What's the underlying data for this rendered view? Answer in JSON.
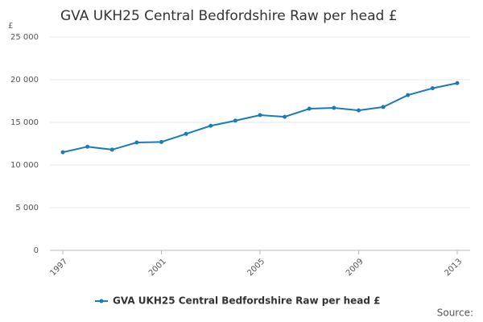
{
  "chart_data": {
    "type": "line",
    "title": "GVA UKH25 Central Bedfordshire Raw per head £",
    "y_label": "£",
    "source": "Source:",
    "x": [
      1997,
      1998,
      1999,
      2000,
      2001,
      2002,
      2003,
      2004,
      2005,
      2006,
      2007,
      2008,
      2009,
      2010,
      2011,
      2012,
      2013
    ],
    "series": [
      {
        "name": "GVA UKH25 Central Bedfordshire Raw per head £",
        "color": "#1a7bb9",
        "values": [
          11500,
          12150,
          11800,
          12640,
          12700,
          13650,
          14600,
          15200,
          15850,
          15650,
          16600,
          16700,
          16400,
          16800,
          18200,
          19000,
          19600
        ]
      }
    ],
    "xlim": [
      1997,
      2013
    ],
    "xticks": [
      1997,
      2001,
      2005,
      2009,
      2013
    ],
    "ylim": [
      0,
      25000
    ],
    "yticks": [
      0,
      {
        "value": 5000,
        "label": "5 000"
      },
      {
        "value": 10000,
        "label": "10 000"
      },
      {
        "value": 15000,
        "label": "15 000"
      },
      {
        "value": 20000,
        "label": "20 000"
      },
      {
        "value": 25000,
        "label": "25 000"
      }
    ],
    "grid": true,
    "legend": "bottom"
  }
}
